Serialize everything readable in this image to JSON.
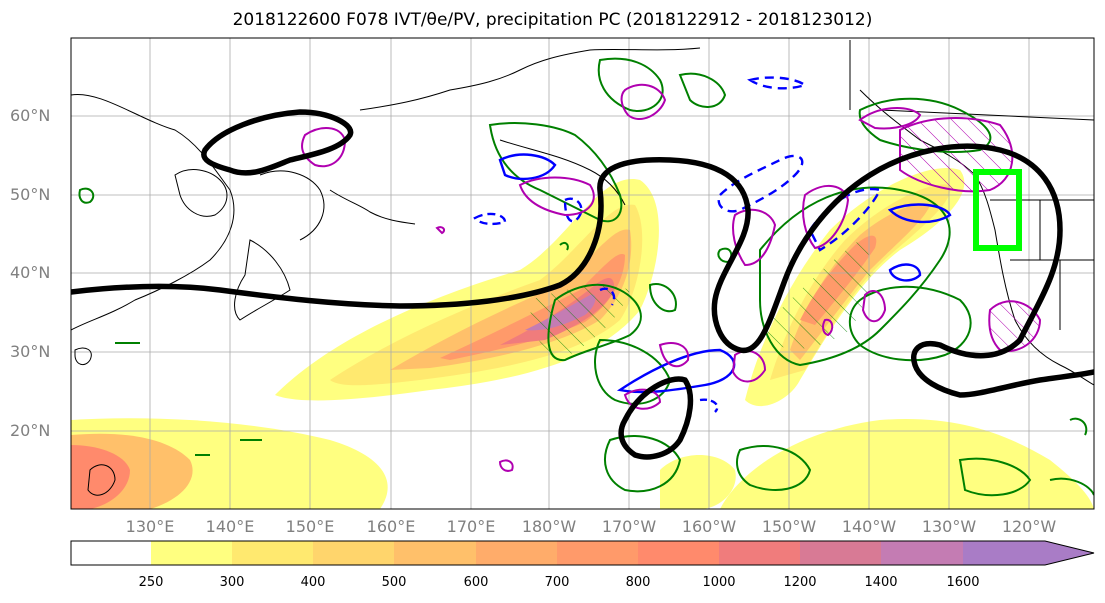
{
  "title": "2018122600 F078 IVT/θe/PV, precipitation PC (2018122912 - 2018123012)",
  "lat_labels": [
    "60°N",
    "50°N",
    "40°N",
    "30°N",
    "20°N"
  ],
  "lon_labels": [
    "130°E",
    "140°E",
    "150°E",
    "160°E",
    "170°E",
    "180°W",
    "170°W",
    "160°W",
    "150°W",
    "140°W",
    "130°W",
    "120°W"
  ],
  "colorbar": {
    "labels": [
      "250",
      "300",
      "400",
      "500",
      "600",
      "700",
      "800",
      "1000",
      "1200",
      "1400",
      "1600"
    ],
    "colors": [
      "#ffffff",
      "#ffff80",
      "#ffe96f",
      "#ffd56c",
      "#ffc06a",
      "#ffac6a",
      "#ff9a6a",
      "#ff8a6c",
      "#f07c7c",
      "#d87a95",
      "#c47cb3",
      "#a97cc6"
    ]
  },
  "legend_colors": {
    "theta_e_contour": "#000000",
    "pv_positive": "#008000",
    "pv_negative": "#0000ff",
    "hatch": "#b000b0",
    "target_box": "#00ff00"
  }
}
